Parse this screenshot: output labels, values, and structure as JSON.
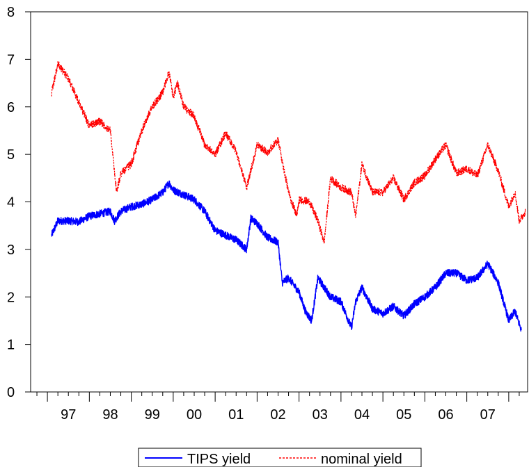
{
  "chart_data": {
    "type": "line",
    "title": "",
    "xlabel": "",
    "ylabel": "",
    "x_categories": [
      "97",
      "98",
      "99",
      "00",
      "01",
      "02",
      "03",
      "04",
      "05",
      "06",
      "07"
    ],
    "ylim": [
      0,
      8
    ],
    "yticks": [
      "0",
      "1",
      "2",
      "3",
      "4",
      "5",
      "6",
      "7",
      "8"
    ],
    "grid": false,
    "legend_position": "bottom-center",
    "series": [
      {
        "name": "TIPS yield",
        "color": "#0000ff",
        "style": "solid",
        "points": [
          [
            1997.1,
            3.3
          ],
          [
            1997.25,
            3.6
          ],
          [
            1997.5,
            3.6
          ],
          [
            1997.75,
            3.58
          ],
          [
            1998.0,
            3.7
          ],
          [
            1998.25,
            3.75
          ],
          [
            1998.5,
            3.8
          ],
          [
            1998.6,
            3.6
          ],
          [
            1998.75,
            3.8
          ],
          [
            1999.0,
            3.9
          ],
          [
            1999.25,
            3.95
          ],
          [
            1999.5,
            4.05
          ],
          [
            1999.75,
            4.2
          ],
          [
            1999.9,
            4.4
          ],
          [
            2000.0,
            4.25
          ],
          [
            2000.25,
            4.15
          ],
          [
            2000.5,
            4.05
          ],
          [
            2000.75,
            3.8
          ],
          [
            2001.0,
            3.4
          ],
          [
            2001.25,
            3.3
          ],
          [
            2001.5,
            3.2
          ],
          [
            2001.75,
            3.0
          ],
          [
            2001.85,
            3.65
          ],
          [
            2002.0,
            3.55
          ],
          [
            2002.25,
            3.25
          ],
          [
            2002.5,
            3.15
          ],
          [
            2002.6,
            2.3
          ],
          [
            2002.75,
            2.4
          ],
          [
            2003.0,
            2.1
          ],
          [
            2003.15,
            1.7
          ],
          [
            2003.3,
            1.5
          ],
          [
            2003.45,
            2.4
          ],
          [
            2003.6,
            2.2
          ],
          [
            2003.75,
            2.0
          ],
          [
            2004.0,
            1.9
          ],
          [
            2004.25,
            1.35
          ],
          [
            2004.35,
            1.9
          ],
          [
            2004.5,
            2.2
          ],
          [
            2004.75,
            1.75
          ],
          [
            2005.0,
            1.65
          ],
          [
            2005.25,
            1.8
          ],
          [
            2005.5,
            1.6
          ],
          [
            2005.75,
            1.85
          ],
          [
            2006.0,
            2.0
          ],
          [
            2006.25,
            2.2
          ],
          [
            2006.5,
            2.5
          ],
          [
            2006.75,
            2.5
          ],
          [
            2007.0,
            2.35
          ],
          [
            2007.25,
            2.4
          ],
          [
            2007.5,
            2.7
          ],
          [
            2007.75,
            2.3
          ],
          [
            2008.0,
            1.5
          ],
          [
            2008.15,
            1.7
          ],
          [
            2008.3,
            1.3
          ]
        ]
      },
      {
        "name": "nominal yield",
        "color": "#ff0000",
        "style": "dotted",
        "points": [
          [
            1997.1,
            6.3
          ],
          [
            1997.25,
            6.9
          ],
          [
            1997.5,
            6.6
          ],
          [
            1997.75,
            6.1
          ],
          [
            1998.0,
            5.6
          ],
          [
            1998.25,
            5.7
          ],
          [
            1998.5,
            5.5
          ],
          [
            1998.65,
            4.2
          ],
          [
            1998.75,
            4.6
          ],
          [
            1999.0,
            4.8
          ],
          [
            1999.25,
            5.5
          ],
          [
            1999.5,
            6.0
          ],
          [
            1999.75,
            6.3
          ],
          [
            1999.9,
            6.75
          ],
          [
            2000.0,
            6.2
          ],
          [
            2000.1,
            6.5
          ],
          [
            2000.25,
            6.0
          ],
          [
            2000.5,
            5.8
          ],
          [
            2000.75,
            5.2
          ],
          [
            2001.0,
            5.0
          ],
          [
            2001.25,
            5.45
          ],
          [
            2001.5,
            5.05
          ],
          [
            2001.75,
            4.3
          ],
          [
            2002.0,
            5.2
          ],
          [
            2002.25,
            5.05
          ],
          [
            2002.5,
            5.3
          ],
          [
            2002.75,
            4.2
          ],
          [
            2002.95,
            3.7
          ],
          [
            2003.0,
            4.05
          ],
          [
            2003.25,
            4.0
          ],
          [
            2003.45,
            3.6
          ],
          [
            2003.6,
            3.15
          ],
          [
            2003.75,
            4.5
          ],
          [
            2004.0,
            4.3
          ],
          [
            2004.25,
            4.2
          ],
          [
            2004.35,
            3.7
          ],
          [
            2004.5,
            4.8
          ],
          [
            2004.75,
            4.2
          ],
          [
            2005.0,
            4.2
          ],
          [
            2005.25,
            4.5
          ],
          [
            2005.5,
            4.05
          ],
          [
            2005.75,
            4.4
          ],
          [
            2006.0,
            4.55
          ],
          [
            2006.25,
            4.9
          ],
          [
            2006.5,
            5.2
          ],
          [
            2006.75,
            4.6
          ],
          [
            2007.0,
            4.7
          ],
          [
            2007.25,
            4.55
          ],
          [
            2007.5,
            5.2
          ],
          [
            2007.75,
            4.65
          ],
          [
            2008.0,
            3.9
          ],
          [
            2008.15,
            4.2
          ],
          [
            2008.25,
            3.6
          ],
          [
            2008.4,
            3.8
          ]
        ]
      }
    ]
  }
}
